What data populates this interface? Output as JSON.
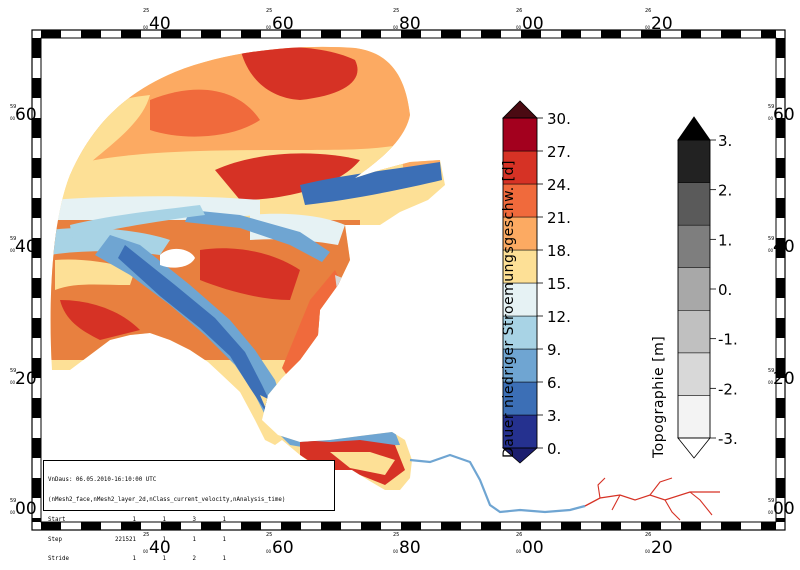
{
  "map": {
    "top_ticks": [
      {
        "deg": "40",
        "min": "25",
        "sec": "00"
      },
      {
        "deg": "60",
        "min": "25",
        "sec": "00"
      },
      {
        "deg": "80",
        "min": "25",
        "sec": "00"
      },
      {
        "deg": "00",
        "min": "26",
        "sec": "00"
      },
      {
        "deg": "20",
        "min": "26",
        "sec": "00"
      }
    ],
    "side_ticks": [
      {
        "deg": "60",
        "min": "59",
        "sec": "00"
      },
      {
        "deg": "40",
        "min": "59",
        "sec": "00"
      },
      {
        "deg": "20",
        "min": "59",
        "sec": "00"
      },
      {
        "deg": "00",
        "min": "59",
        "sec": "00"
      }
    ]
  },
  "legend_velocity": {
    "title": "Dauer niedriger Stroemungsgeschw. [d]",
    "ticks": [
      "30.",
      "27.",
      "24.",
      "21.",
      "18.",
      "15.",
      "12.",
      "9.",
      "6.",
      "3.",
      "0."
    ],
    "colors": [
      "#25318f",
      "#3c6fb6",
      "#6fa5d2",
      "#a8d3e5",
      "#e6f2f4",
      "#fde096",
      "#fcaa62",
      "#f06a3c",
      "#d63225",
      "#a3001e"
    ],
    "over_color": "#4a0a12",
    "under_color": "#1c1e6e"
  },
  "legend_topo": {
    "title": "Topographie [m]",
    "ticks": [
      "3.",
      "2.",
      "1.",
      "0.",
      "-1.",
      "-2.",
      "-3."
    ],
    "colors": [
      "#f3f3f3",
      "#d8d8d8",
      "#c0c0c0",
      "#a8a8a8",
      "#7e7e7e",
      "#5a5a5a",
      "#222222"
    ],
    "over_color": "#000000",
    "under_color": "#ffffff"
  },
  "info": {
    "line1": "VnDaus: 06.05.2010-16:10:00 UTC",
    "line2": "(nMesh2_face,nMesh2_layer_2d,nClass_current_velocity,nAnalysis_time)",
    "rows": [
      {
        "label": "Start",
        "v": [
          "1",
          "1",
          "3",
          "1"
        ]
      },
      {
        "label": "Step",
        "v": [
          "221521",
          "1",
          "1",
          "1"
        ]
      },
      {
        "label": "Stride",
        "v": [
          "1",
          "1",
          "2",
          "1"
        ]
      }
    ]
  }
}
